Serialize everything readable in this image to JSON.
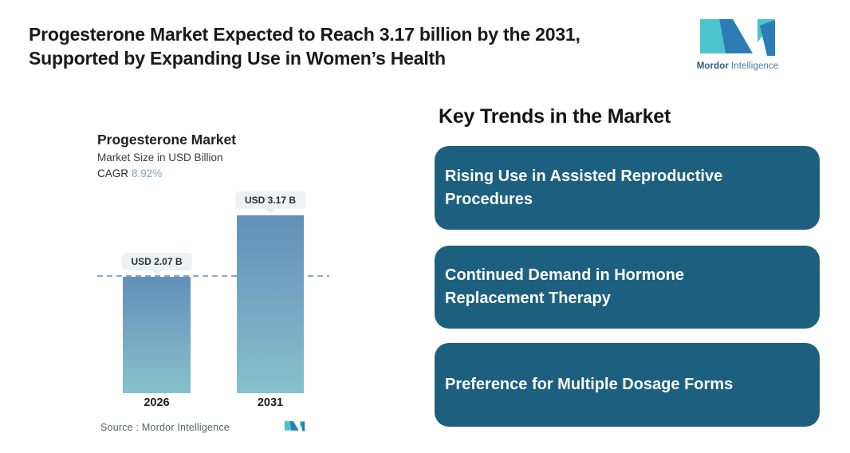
{
  "header": {
    "title": "Progesterone Market Expected to Reach 3.17 billion by the 2031,\nSupported by Expanding Use in Women’s Health",
    "logo": {
      "brand_bold": "Mordor",
      "brand_regular": "Intelligence"
    }
  },
  "chart_data": {
    "type": "bar",
    "title": "Progesterone Market",
    "subtitle": "Market Size in USD Billion",
    "cagr_label": "CAGR",
    "cagr_value": "8.92%",
    "categories": [
      "2026",
      "2031"
    ],
    "values": [
      2.07,
      3.17
    ],
    "value_labels": [
      "USD 2.07 B",
      "USD 3.17 B"
    ],
    "xlabel": "",
    "ylabel": "Market Size in USD Billion",
    "ylim": [
      0,
      3.6
    ],
    "grid": false,
    "legend": "none",
    "annotations": [
      "horizontal dashed reference line at 2026 value level"
    ],
    "source_label": "Source :  Mordor Intelligence"
  },
  "trends": {
    "heading": "Key Trends in the Market",
    "items": [
      {
        "label": "Rising Use in Assisted Reproductive\nProcedures"
      },
      {
        "label": "Continued Demand in Hormone\nReplacement Therapy"
      },
      {
        "label": "Preference for Multiple Dosage Forms"
      }
    ]
  },
  "colors": {
    "trend_box": "#1d5f7e",
    "bar_gradient_top": "#6190b9",
    "bar_gradient_bottom": "#85c2ca",
    "dashed_line": "#8ba8c9",
    "cagr_value": "#7ea8c8",
    "tooltip_bg": "#edf1f2",
    "logo_teal": "#4cc4cc",
    "logo_blue": "#2d7cb6",
    "title_text": "#191919",
    "card_text": "#ffffff"
  },
  "icons": {
    "logo_mark": "mordor-intelligence-monogram"
  }
}
